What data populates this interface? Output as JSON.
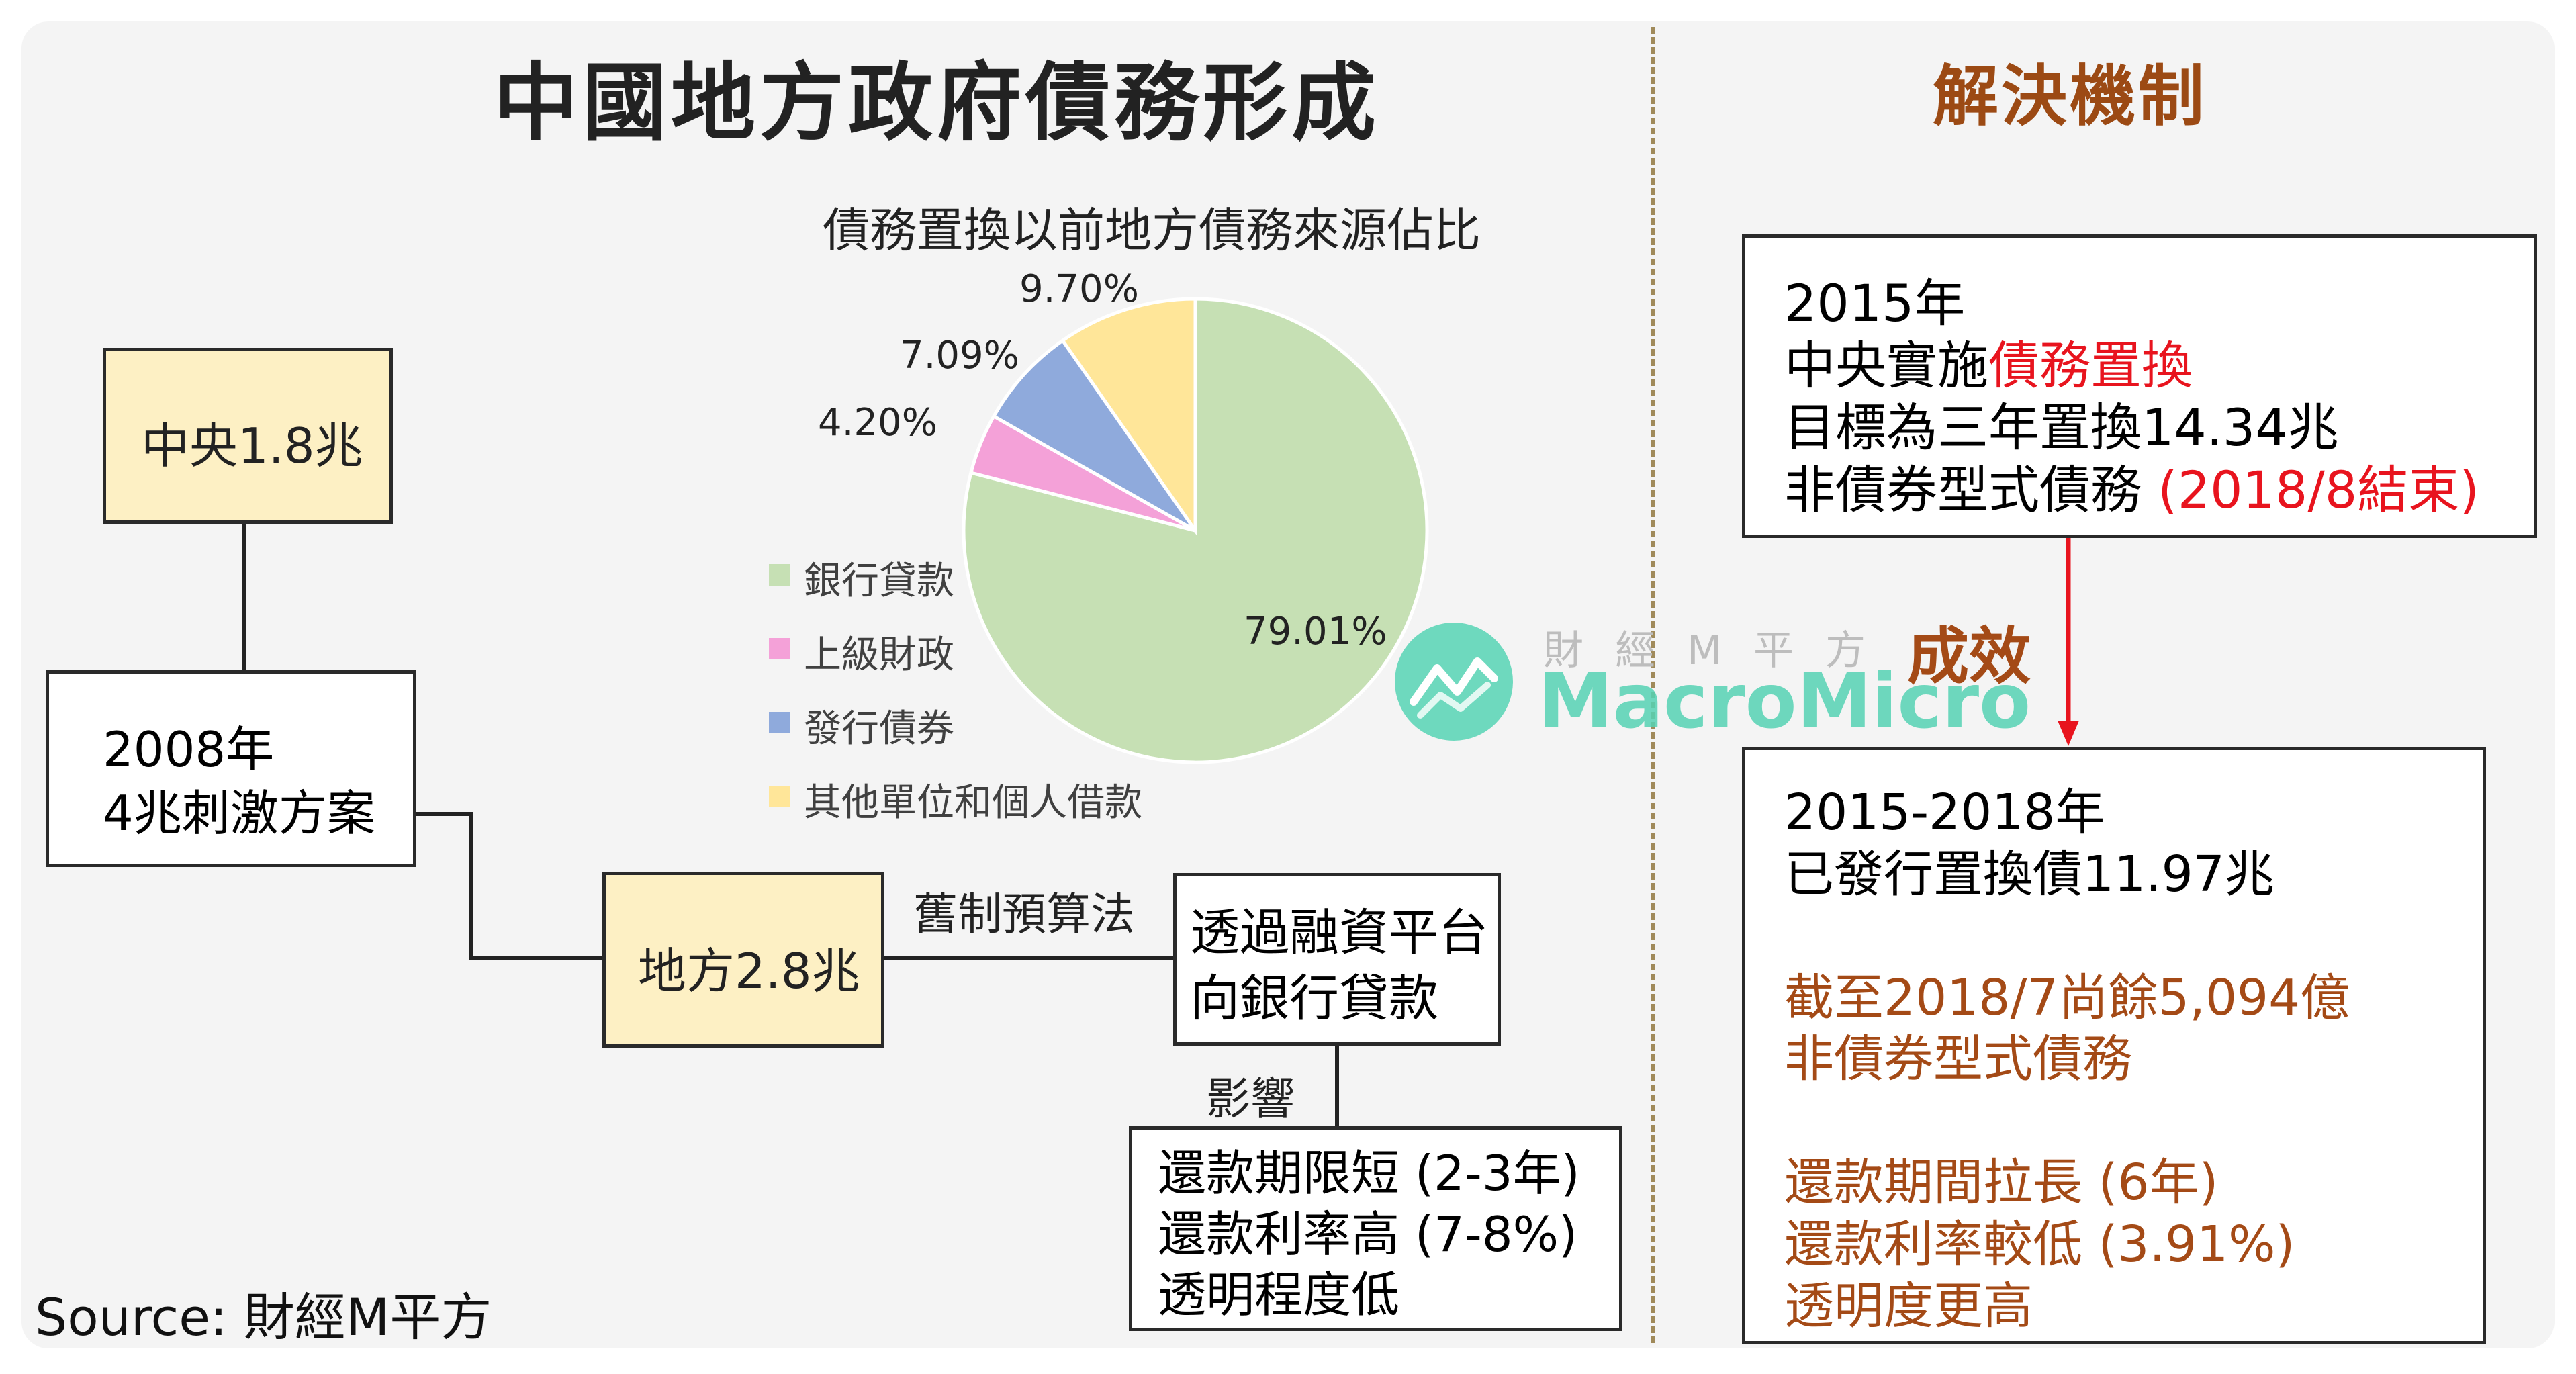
{
  "title": "中國地方政府債務形成",
  "right_title": "解決機制",
  "source": "Source: 財經M平方",
  "watermark": {
    "cn": "財 經 M 平 方",
    "en": "MacroMicro"
  },
  "left": {
    "central": "中央1.8兆",
    "stimulus": [
      "2008年",
      "4兆刺激方案"
    ],
    "local": "地方2.8兆",
    "old_budget_law": "舊制預算法",
    "financing": [
      "透過融資平台",
      "向銀行貸款"
    ],
    "impact_label": "影響",
    "impacts": [
      "還款期限短 (2-3年)",
      "還款利率高 (7-8%)",
      "透明程度低"
    ]
  },
  "chart_data": {
    "type": "pie",
    "title": "債務置換以前地方債務來源佔比",
    "slices": [
      {
        "name": "銀行貸款",
        "value": 79.01,
        "label": "79.01%",
        "color": "#c6e0b4"
      },
      {
        "name": "上級財政",
        "value": 4.2,
        "label": "4.20%",
        "color": "#f4a1d8"
      },
      {
        "name": "發行債券",
        "value": 7.09,
        "label": "7.09%",
        "color": "#8faadc"
      },
      {
        "name": "其他單位和個人借款",
        "value": 9.7,
        "label": "9.70%",
        "color": "#ffe699"
      }
    ],
    "legend_position": "left"
  },
  "right": {
    "box1": {
      "year": "2015年",
      "line2_prefix": "中央實施",
      "line2_highlight": "債務置換",
      "line3": "目標為三年置換14.34兆",
      "line4_prefix": "非債券型式債務 ",
      "line4_highlight": "(2018/8結束)"
    },
    "effect_label": "成效",
    "box2": {
      "line1": "2015-2018年",
      "line2": "已發行置換債11.97兆",
      "remaining": [
        "截至2018/7尚餘5,094億",
        "非債券型式債務"
      ],
      "effects": [
        "還款期間拉長 (6年)",
        "還款利率較低 (3.91%)",
        "透明度更高"
      ]
    }
  }
}
